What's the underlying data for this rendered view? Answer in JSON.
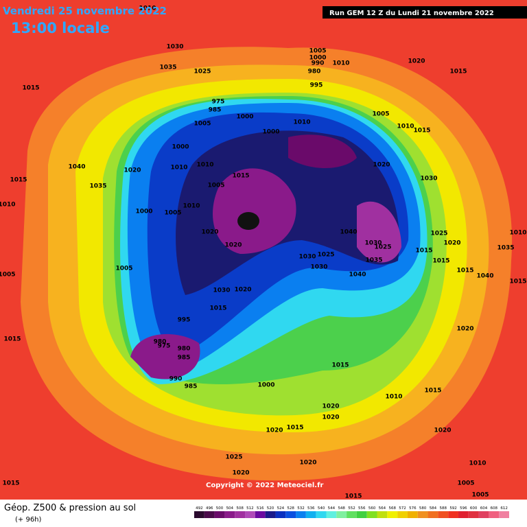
{
  "header": {
    "date": "Vendredi 25 novembre 2022",
    "time": "13:00 locale",
    "run": "Run GEM 12 Z du Lundi 21 novembre 2022"
  },
  "copyright": "Copyright © 2022 Meteociel.fr",
  "footer": {
    "title": "Géop. Z500 & pression au sol",
    "lead": "(+ 96h)"
  },
  "isobars": [
    1010,
    1030,
    1035,
    1025,
    1015,
    1005,
    1000,
    990,
    980,
    1010,
    995,
    1020,
    1015,
    975,
    985,
    1005,
    1000,
    1000,
    1010,
    1005,
    1010,
    1015,
    1000,
    1020,
    1010,
    1010,
    1015,
    1005,
    1020,
    1030,
    1040,
    1015,
    1035,
    1010,
    1000,
    1005,
    1010,
    1020,
    1020,
    1040,
    1030,
    1025,
    1015,
    1015,
    1020,
    1025,
    1005,
    1030,
    1030,
    1025,
    1035,
    1040,
    1005,
    1030,
    1020,
    1015,
    995,
    1015,
    1020,
    980,
    975,
    980,
    985,
    990,
    985,
    1000,
    1015,
    1010,
    1015,
    1020,
    1020,
    1020,
    1015,
    1020,
    1025,
    1020,
    1020,
    1010,
    1005,
    1015,
    1015,
    1005,
    1040,
    1015,
    1035,
    1010,
    1015
  ],
  "scale": {
    "values": [
      492,
      496,
      500,
      504,
      508,
      512,
      516,
      520,
      524,
      528,
      532,
      536,
      540,
      544,
      548,
      552,
      556,
      560,
      564,
      568,
      572,
      576,
      580,
      584,
      588,
      592,
      596,
      600,
      604,
      608,
      612
    ],
    "colors": [
      "#2a0a2e",
      "#4a0a4a",
      "#6a0a6a",
      "#8a1a8a",
      "#a030a0",
      "#b04ab8",
      "#6a0aa0",
      "#1a1a8a",
      "#0a30c0",
      "#0a50e0",
      "#0a80f0",
      "#10b0f0",
      "#30d8f0",
      "#60f0e0",
      "#80f0a0",
      "#60e060",
      "#40d040",
      "#80e020",
      "#c0e010",
      "#f0f000",
      "#f0d000",
      "#f0b000",
      "#f09020",
      "#f07020",
      "#f05020",
      "#f03020",
      "#e02030",
      "#e03040",
      "#e04060",
      "#f06080",
      "#f080a0"
    ]
  }
}
